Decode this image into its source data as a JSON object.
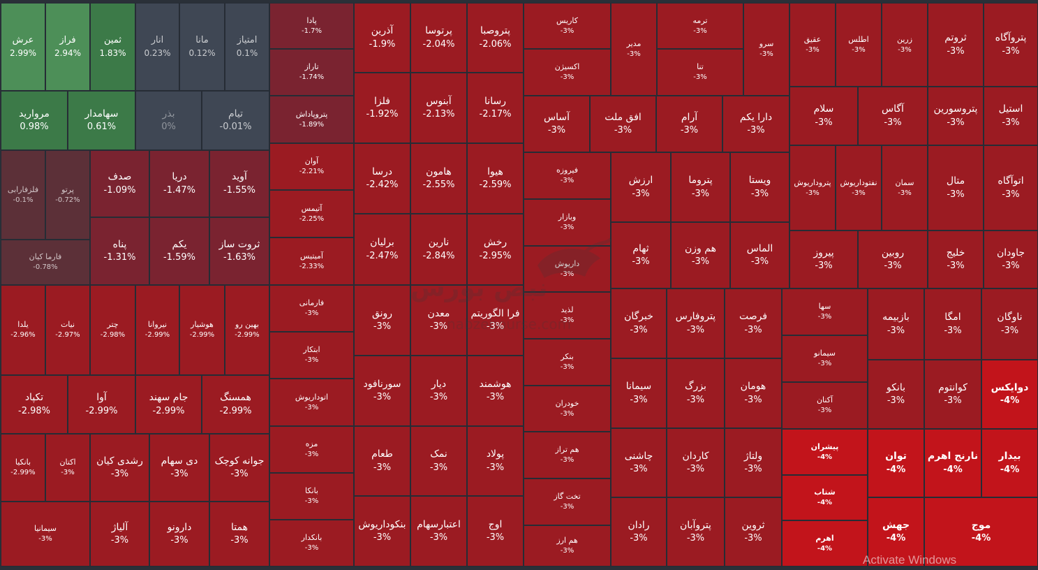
{
  "chart_data": {
    "type": "treemap",
    "colors": {
      "strong_red": "#c2141b",
      "red": "#9b1b22",
      "pale_red": "#7a2330",
      "muted_red": "#5c3038",
      "neutral": "#3f4754",
      "green": "#3c7a48",
      "light_green": "#4d8f58"
    },
    "cells": [
      {
        "name": "عرش",
        "change": "2.99%",
        "value": 2.99
      },
      {
        "name": "فراز",
        "change": "2.94%",
        "value": 2.94
      },
      {
        "name": "ثمین",
        "change": "1.83%",
        "value": 1.83
      },
      {
        "name": "انار",
        "change": "0.23%",
        "value": 0.23
      },
      {
        "name": "مانا",
        "change": "0.12%",
        "value": 0.12
      },
      {
        "name": "امتیاز",
        "change": "0.1%",
        "value": 0.1
      },
      {
        "name": "مروارید",
        "change": "0.98%",
        "value": 0.98
      },
      {
        "name": "سهامدار",
        "change": "0.61%",
        "value": 0.61
      },
      {
        "name": "بذر",
        "change": "0%",
        "value": 0
      },
      {
        "name": "تیام",
        "change": "-0.01%",
        "value": -0.01
      },
      {
        "name": "فلزفارابی",
        "change": "-0.1%",
        "value": -0.1
      },
      {
        "name": "پرتو",
        "change": "-0.72%",
        "value": -0.72
      },
      {
        "name": "صدف",
        "change": "-1.09%",
        "value": -1.09
      },
      {
        "name": "دریا",
        "change": "-1.47%",
        "value": -1.47
      },
      {
        "name": "آوید",
        "change": "-1.55%",
        "value": -1.55
      },
      {
        "name": "پناه",
        "change": "-1.31%",
        "value": -1.31
      },
      {
        "name": "یکم",
        "change": "-1.59%",
        "value": -1.59
      },
      {
        "name": "ثروت ساز",
        "change": "-1.63%",
        "value": -1.63
      },
      {
        "name": "فارما کیان",
        "change": "-0.78%",
        "value": -0.78
      },
      {
        "name": "پادا",
        "change": "-1.7%",
        "value": -1.7
      },
      {
        "name": "تاراز",
        "change": "-1.74%",
        "value": -1.74
      },
      {
        "name": "پتروپاداش",
        "change": "-1.89%",
        "value": -1.89
      },
      {
        "name": "آوان",
        "change": "-2.21%",
        "value": -2.21
      },
      {
        "name": "آتیمس",
        "change": "-2.25%",
        "value": -2.25
      },
      {
        "name": "آمیتیس",
        "change": "-2.33%",
        "value": -2.33
      },
      {
        "name": "آذرین",
        "change": "-1.9%",
        "value": -1.9
      },
      {
        "name": "پرتوسا",
        "change": "-2.04%",
        "value": -2.04
      },
      {
        "name": "پتروصبا",
        "change": "-2.06%",
        "value": -2.06
      },
      {
        "name": "فلزا",
        "change": "-1.92%",
        "value": -1.92
      },
      {
        "name": "آبنوس",
        "change": "-2.13%",
        "value": -2.13
      },
      {
        "name": "رسانا",
        "change": "-2.17%",
        "value": -2.17
      },
      {
        "name": "درسا",
        "change": "-2.42%",
        "value": -2.42
      },
      {
        "name": "هامون",
        "change": "-2.55%",
        "value": -2.55
      },
      {
        "name": "هیوا",
        "change": "-2.59%",
        "value": -2.59
      },
      {
        "name": "برلیان",
        "change": "-2.47%",
        "value": -2.47
      },
      {
        "name": "نارین",
        "change": "-2.84%",
        "value": -2.84
      },
      {
        "name": "رخش",
        "change": "-2.95%",
        "value": -2.95
      },
      {
        "name": "یلدا",
        "change": "-2.96%",
        "value": -2.96
      },
      {
        "name": "نیات",
        "change": "-2.97%",
        "value": -2.97
      },
      {
        "name": "چتر",
        "change": "-2.98%",
        "value": -2.98
      },
      {
        "name": "نیروانا",
        "change": "-2.99%",
        "value": -2.99
      },
      {
        "name": "هوشیار",
        "change": "-2.99%",
        "value": -2.99
      },
      {
        "name": "بهین رو",
        "change": "-2.99%",
        "value": -2.99
      },
      {
        "name": "تکپاد",
        "change": "-2.98%",
        "value": -2.98
      },
      {
        "name": "آوا",
        "change": "-2.99%",
        "value": -2.99
      },
      {
        "name": "جام سهند",
        "change": "-2.99%",
        "value": -2.99
      },
      {
        "name": "همسنگ",
        "change": "-2.99%",
        "value": -2.99
      },
      {
        "name": "بانکیا",
        "change": "-2.99%",
        "value": -2.99
      },
      {
        "name": "اکتان",
        "change": "-3%",
        "value": -3
      },
      {
        "name": "رشدی کیان",
        "change": "-3%",
        "value": -3
      },
      {
        "name": "دی سهام",
        "change": "-3%",
        "value": -3
      },
      {
        "name": "جوانه کوچک",
        "change": "-3%",
        "value": -3
      },
      {
        "name": "سیمانیا",
        "change": "-3%",
        "value": -3
      },
      {
        "name": "آلیاژ",
        "change": "-3%",
        "value": -3
      },
      {
        "name": "دارونو",
        "change": "-3%",
        "value": -3
      },
      {
        "name": "همتا",
        "change": "-3%",
        "value": -3
      },
      {
        "name": "فارمانی",
        "change": "-3%",
        "value": -3
      },
      {
        "name": "ابتکار",
        "change": "-3%",
        "value": -3
      },
      {
        "name": "اتوداریوش",
        "change": "-3%",
        "value": -3
      },
      {
        "name": "مزه",
        "change": "-3%",
        "value": -3
      },
      {
        "name": "بانکا",
        "change": "-3%",
        "value": -3
      },
      {
        "name": "بانکدار",
        "change": "-3%",
        "value": -3
      },
      {
        "name": "رونق",
        "change": "-3%",
        "value": -3
      },
      {
        "name": "معدن",
        "change": "-3%",
        "value": -3
      },
      {
        "name": "فرا الگوریتم",
        "change": "-3%",
        "value": -3
      },
      {
        "name": "سورنافود",
        "change": "-3%",
        "value": -3
      },
      {
        "name": "دیار",
        "change": "-3%",
        "value": -3
      },
      {
        "name": "هوشمند",
        "change": "-3%",
        "value": -3
      },
      {
        "name": "طعام",
        "change": "-3%",
        "value": -3
      },
      {
        "name": "نمک",
        "change": "-3%",
        "value": -3
      },
      {
        "name": "پولاد",
        "change": "-3%",
        "value": -3
      },
      {
        "name": "بنکوداریوش",
        "change": "-3%",
        "value": -3
      },
      {
        "name": "اعتبارسهام",
        "change": "-3%",
        "value": -3
      },
      {
        "name": "اوج",
        "change": "-3%",
        "value": -3
      },
      {
        "name": "کاریس",
        "change": "-3%",
        "value": -3
      },
      {
        "name": "اکسیژن",
        "change": "-3%",
        "value": -3
      },
      {
        "name": "مدیر",
        "change": "-3%",
        "value": -3
      },
      {
        "name": "ترمه",
        "change": "-3%",
        "value": -3
      },
      {
        "name": "تنا",
        "change": "-3%",
        "value": -3
      },
      {
        "name": "سرو",
        "change": "-3%",
        "value": -3
      },
      {
        "name": "آساس",
        "change": "-3%",
        "value": -3
      },
      {
        "name": "افق ملت",
        "change": "-3%",
        "value": -3
      },
      {
        "name": "آرام",
        "change": "-3%",
        "value": -3
      },
      {
        "name": "دارا یکم",
        "change": "-3%",
        "value": -3
      },
      {
        "name": "فیروزه",
        "change": "-3%",
        "value": -3
      },
      {
        "name": "وبازار",
        "change": "-3%",
        "value": -3
      },
      {
        "name": "داریوش",
        "change": "-3%",
        "value": -3
      },
      {
        "name": "لذید",
        "change": "-3%",
        "value": -3
      },
      {
        "name": "بنکر",
        "change": "-3%",
        "value": -3
      },
      {
        "name": "خودران",
        "change": "-3%",
        "value": -3
      },
      {
        "name": "هم تراز",
        "change": "-3%",
        "value": -3
      },
      {
        "name": "تخت گاز",
        "change": "-3%",
        "value": -3
      },
      {
        "name": "هم ارز",
        "change": "-3%",
        "value": -3
      },
      {
        "name": "ارزش",
        "change": "-3%",
        "value": -3
      },
      {
        "name": "پتروما",
        "change": "-3%",
        "value": -3
      },
      {
        "name": "ویستا",
        "change": "-3%",
        "value": -3
      },
      {
        "name": "ثهام",
        "change": "-3%",
        "value": -3
      },
      {
        "name": "هم وزن",
        "change": "-3%",
        "value": -3
      },
      {
        "name": "الماس",
        "change": "-3%",
        "value": -3
      },
      {
        "name": "خبرگان",
        "change": "-3%",
        "value": -3
      },
      {
        "name": "پتروفارس",
        "change": "-3%",
        "value": -3
      },
      {
        "name": "فرصت",
        "change": "-3%",
        "value": -3
      },
      {
        "name": "سیمانا",
        "change": "-3%",
        "value": -3
      },
      {
        "name": "بزرگ",
        "change": "-3%",
        "value": -3
      },
      {
        "name": "هومان",
        "change": "-3%",
        "value": -3
      },
      {
        "name": "چاشنی",
        "change": "-3%",
        "value": -3
      },
      {
        "name": "کاردان",
        "change": "-3%",
        "value": -3
      },
      {
        "name": "ولتاژ",
        "change": "-3%",
        "value": -3
      },
      {
        "name": "رادان",
        "change": "-3%",
        "value": -3
      },
      {
        "name": "پتروآبان",
        "change": "-3%",
        "value": -3
      },
      {
        "name": "ثروین",
        "change": "-3%",
        "value": -3
      },
      {
        "name": "عقیق",
        "change": "-3%",
        "value": -3
      },
      {
        "name": "اطلس",
        "change": "-3%",
        "value": -3
      },
      {
        "name": "زرین",
        "change": "-3%",
        "value": -3
      },
      {
        "name": "ثروتم",
        "change": "-3%",
        "value": -3
      },
      {
        "name": "پتروآگاه",
        "change": "-3%",
        "value": -3
      },
      {
        "name": "سلام",
        "change": "-3%",
        "value": -3
      },
      {
        "name": "آگاس",
        "change": "-3%",
        "value": -3
      },
      {
        "name": "پتروسورین",
        "change": "-3%",
        "value": -3
      },
      {
        "name": "استیل",
        "change": "-3%",
        "value": -3
      },
      {
        "name": "پتروداریوش",
        "change": "-3%",
        "value": -3
      },
      {
        "name": "نفتوداریوش",
        "change": "-3%",
        "value": -3
      },
      {
        "name": "سمان",
        "change": "-3%",
        "value": -3
      },
      {
        "name": "متال",
        "change": "-3%",
        "value": -3
      },
      {
        "name": "اتوآگاه",
        "change": "-3%",
        "value": -3
      },
      {
        "name": "پیروز",
        "change": "-3%",
        "value": -3
      },
      {
        "name": "روبین",
        "change": "-3%",
        "value": -3
      },
      {
        "name": "خلیج",
        "change": "-3%",
        "value": -3
      },
      {
        "name": "جاودان",
        "change": "-3%",
        "value": -3
      },
      {
        "name": "سها",
        "change": "-3%",
        "value": -3
      },
      {
        "name": "سیمانو",
        "change": "-3%",
        "value": -3
      },
      {
        "name": "آکنان",
        "change": "-3%",
        "value": -3
      },
      {
        "name": "بازبیمه",
        "change": "-3%",
        "value": -3
      },
      {
        "name": "امگا",
        "change": "-3%",
        "value": -3
      },
      {
        "name": "ناوگان",
        "change": "-3%",
        "value": -3
      },
      {
        "name": "بانکو",
        "change": "-3%",
        "value": -3
      },
      {
        "name": "کوانتوم",
        "change": "-3%",
        "value": -3
      },
      {
        "name": "دوایکس",
        "change": "-4%",
        "value": -4
      },
      {
        "name": "پیشران",
        "change": "-4%",
        "value": -4
      },
      {
        "name": "شتاب",
        "change": "-4%",
        "value": -4
      },
      {
        "name": "اهرم",
        "change": "-4%",
        "value": -4
      },
      {
        "name": "توان",
        "change": "-4%",
        "value": -4
      },
      {
        "name": "نارنج اهرم",
        "change": "-4%",
        "value": -4
      },
      {
        "name": "بیدار",
        "change": "-4%",
        "value": -4
      },
      {
        "name": "جهش",
        "change": "-4%",
        "value": -4
      },
      {
        "name": "موج",
        "change": "-4%",
        "value": -4
      }
    ]
  },
  "watermark": {
    "text": "نبض بورس",
    "url": "nabzebourse.com"
  },
  "os_overlay": "Activate Windows"
}
